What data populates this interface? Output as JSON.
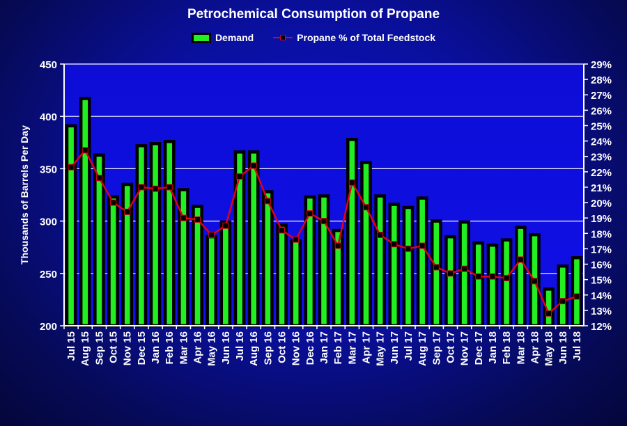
{
  "chart_data": {
    "type": "bar",
    "title": "Petrochemical Consumption of Propane",
    "ylabel": "Thousands of Barrels Per Day",
    "ylim": [
      200,
      450
    ],
    "y_ticks": [
      "200",
      "250",
      "300",
      "350",
      "400",
      "450"
    ],
    "y2lim": [
      12,
      29
    ],
    "y2_ticks": [
      "12%",
      "13%",
      "14%",
      "15%",
      "16%",
      "17%",
      "18%",
      "19%",
      "20%",
      "21%",
      "22%",
      "23%",
      "24%",
      "25%",
      "26%",
      "27%",
      "28%",
      "29%"
    ],
    "grid": true,
    "legend_position": "top-center",
    "categories": [
      "Jul 15",
      "Aug 15",
      "Sep 15",
      "Oct 15",
      "Nov 15",
      "Dec 15",
      "Jan 16",
      "Feb 16",
      "Mar 16",
      "Apr 16",
      "May 16",
      "Jun 16",
      "Jul 16",
      "Aug 16",
      "Sep 16",
      "Oct 16",
      "Nov 16",
      "Dec 16",
      "Jan 17",
      "Feb 17",
      "Mar 17",
      "Apr 17",
      "May 17",
      "Jun 17",
      "Jul 17",
      "Aug 17",
      "Sep 17",
      "Oct 17",
      "Nov 17",
      "Dec 17",
      "Jan 18",
      "Feb 18",
      "Mar 18",
      "Apr 18",
      "May 18",
      "Jun 18",
      "Jul 18"
    ],
    "series": [
      {
        "name": "Demand",
        "type": "bar",
        "axis": "left",
        "color": "#22ee22",
        "values": [
          391,
          417,
          363,
          323,
          335,
          372,
          374,
          376,
          330,
          314,
          285,
          299,
          366,
          366,
          328,
          296,
          281,
          323,
          324,
          291,
          378,
          356,
          324,
          316,
          313,
          322,
          300,
          285,
          299,
          279,
          277,
          282,
          294,
          287,
          235,
          257,
          265
        ]
      },
      {
        "name": "Propane % of Total Feedstock",
        "type": "line",
        "axis": "right",
        "color": "#e0001a",
        "values": [
          22.3,
          23.4,
          21.6,
          20.0,
          19.4,
          21.0,
          20.9,
          21.0,
          19.0,
          18.9,
          17.9,
          18.5,
          21.7,
          22.4,
          20.1,
          18.2,
          17.6,
          19.3,
          18.8,
          17.2,
          21.3,
          19.7,
          17.9,
          17.3,
          17.0,
          17.2,
          15.8,
          15.4,
          15.7,
          15.2,
          15.2,
          15.1,
          16.3,
          14.9,
          12.8,
          13.6,
          13.9
        ]
      }
    ]
  }
}
